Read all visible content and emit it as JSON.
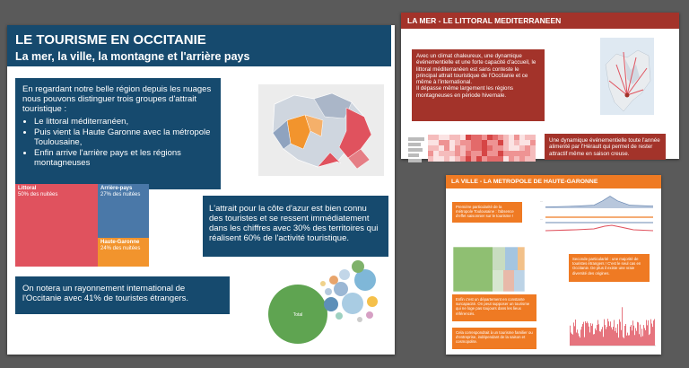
{
  "main": {
    "title": "LE TOURISME EN OCCITANIE",
    "subtitle": "La mer, la ville, la montagne et l'arrière pays",
    "intro_text": "En regardant notre belle région depuis les nuages nous pouvons distinguer trois groupes d'attrait touristique :",
    "bullets": [
      "Le littoral méditerranéen,",
      "Puis vient la Haute Garonne avec la métropole Toulousaine,",
      "Enfin arrive l'arrière pays et les régions montagneuses"
    ],
    "treemap": [
      {
        "label": "Littoral",
        "sub": "50% des nuitées",
        "color": "#e0525e"
      },
      {
        "label": "Arrière-pays",
        "sub": "27% des nuitées",
        "color": "#4a78a8"
      },
      {
        "label": "Haute-Garonne",
        "sub": "24% des nuitées",
        "color": "#f2942d"
      }
    ],
    "coast_text": "L'attrait pour la côte d'azur est bien connu des touristes et se ressent immédiatement dans les chiffres avec 30% des territoires qui réalisent 60% de l'activité touristique.",
    "intl_text": "On notera un rayonnement international de l'Occitanie avec 41% de touristes étrangers.",
    "bubble_label": "Total"
  },
  "mer": {
    "title": "LA MER - LE LITTORAL MEDITERRANEEN",
    "text1": "Avec un climat chaleureux, une dynamique événementielle et une forte capacité d'accueil, le littoral méditerranéen est sans conteste le principal attrait touristique de l'Occitanie et ce même à l'international.",
    "text2": "Il dépasse même largement les régions montagneuses en période hivernale.",
    "text3": "Une dynamique événementielle toute l'année alimenté par l'Hérault qui permet de rester attractif même en saison creuse."
  },
  "ville": {
    "title": "LA VILLE - LA METROPOLE DE HAUTE-GARONNE",
    "box1": "Première particularité de la métropole Toulousaine : l'absence d'effet saisonnier sur le tourisme !",
    "box2": "Seconde particularité : une majorité de touristes étrangers ! C'est le seul cas en Occitanie. De plus il existe une vraie diversité des origines.",
    "box3": "Enfin c'est un département en constante surcapacité. On peut supposer un tourisme qui ne loge pas toujours dans les lieux référencés.",
    "box4": "Cela correspondrait à un tourisme familier ou d'entreprise, indépendant de la saison et cosmopolite."
  },
  "colors": {
    "navy": "#164a6e",
    "red": "#a3332a",
    "orange": "#ef7a23"
  }
}
